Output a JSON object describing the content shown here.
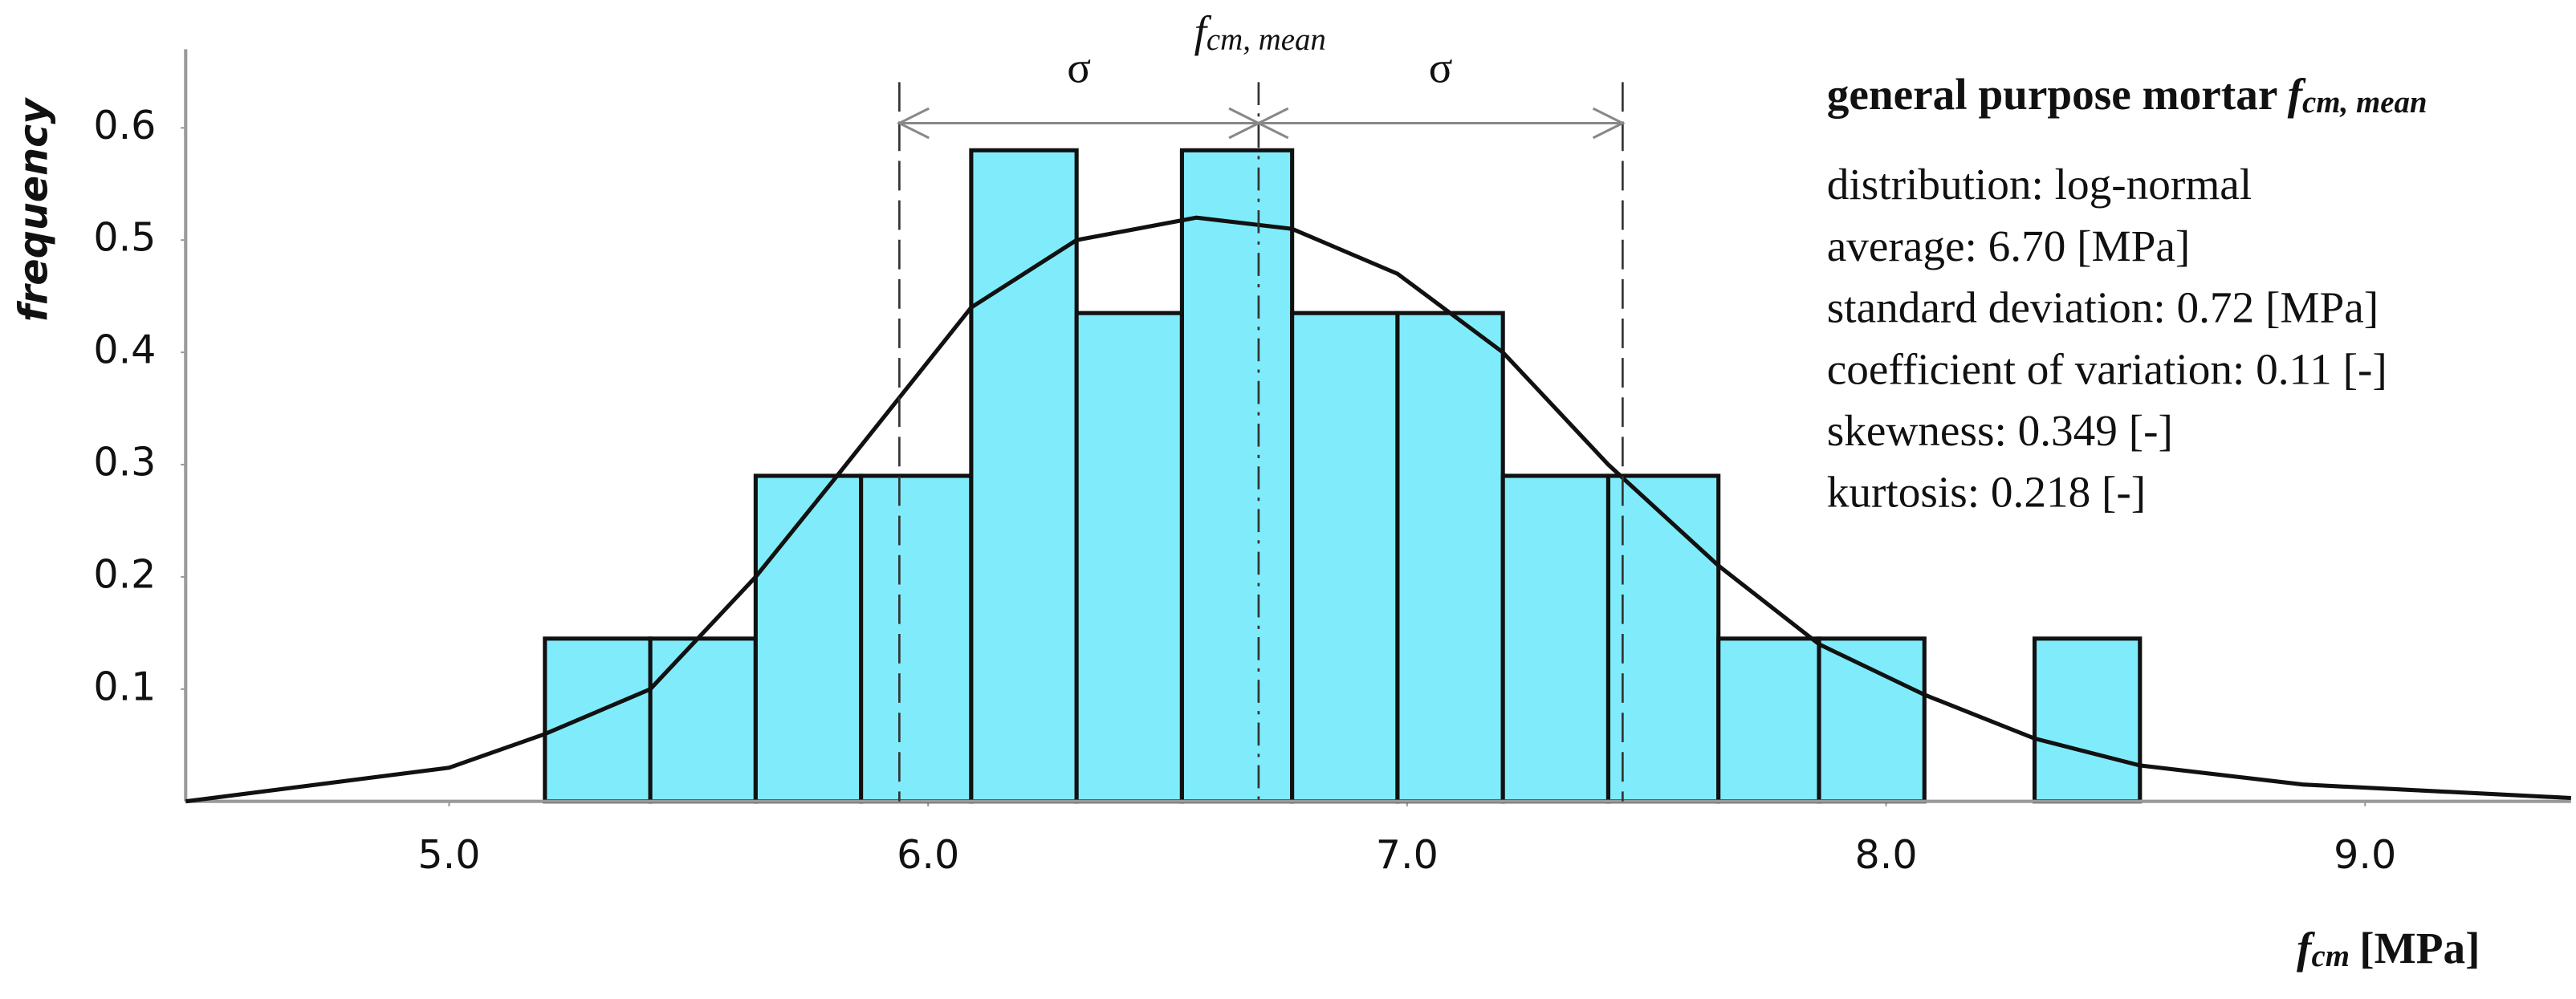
{
  "chart_data": {
    "type": "histogram",
    "title": "general purpose mortar",
    "title_symbol": "f",
    "title_symbol_sub": "cm, mean",
    "x_label_symbol": "f",
    "x_label_sub": "cm",
    "x_label_unit": "[MPa]",
    "y_label": "frequency",
    "stats": [
      "distribution: log-normal",
      "average: 6.70 [MPa]",
      "standard deviation: 0.72 [MPa]",
      "coefficient of variation: 0.11 [-]",
      "skewness: 0.349 [-]",
      "kurtosis: 0.218 [-]"
    ],
    "mean_label_symbol": "f",
    "mean_label_sub": "cm, mean",
    "sigma_label": "σ",
    "bins": [
      5.2,
      5.42,
      5.64,
      5.86,
      6.09,
      6.31,
      6.53,
      6.76,
      6.98,
      7.2,
      7.42,
      7.65,
      7.86,
      8.08,
      8.31,
      8.53
    ],
    "counts": [
      0.145,
      0.145,
      0.29,
      0.29,
      0.58,
      0.435,
      0.58,
      0.435,
      0.435,
      0.29,
      0.29,
      0.145,
      0.145,
      0,
      0.145
    ],
    "color": "#80ecfb",
    "curve": {
      "x": [
        4.45,
        5.0,
        5.2,
        5.42,
        5.64,
        5.81,
        6.09,
        6.31,
        6.56,
        6.76,
        6.98,
        7.2,
        7.42,
        7.65,
        7.86,
        8.08,
        8.31,
        8.53,
        8.87,
        9.43
      ],
      "y": [
        0.0,
        0.03,
        0.06,
        0.1,
        0.2,
        0.29,
        0.44,
        0.5,
        0.52,
        0.51,
        0.47,
        0.4,
        0.3,
        0.21,
        0.14,
        0.095,
        0.056,
        0.032,
        0.015,
        0.003
      ]
    },
    "reference_lines": [
      5.94,
      6.69,
      7.45
    ],
    "xlim": [
      4.45,
      9.43
    ],
    "ylim": [
      0,
      0.67
    ],
    "xticks": [
      {
        "value": 5,
        "label": "5.0"
      },
      {
        "value": 6,
        "label": "6.0"
      },
      {
        "value": 7,
        "label": "7.0"
      },
      {
        "value": 8,
        "label": "8.0"
      },
      {
        "value": 9,
        "label": "9.0"
      }
    ],
    "yticks": [
      0.1,
      0.2,
      0.3,
      0.4,
      0.5,
      0.6
    ]
  }
}
